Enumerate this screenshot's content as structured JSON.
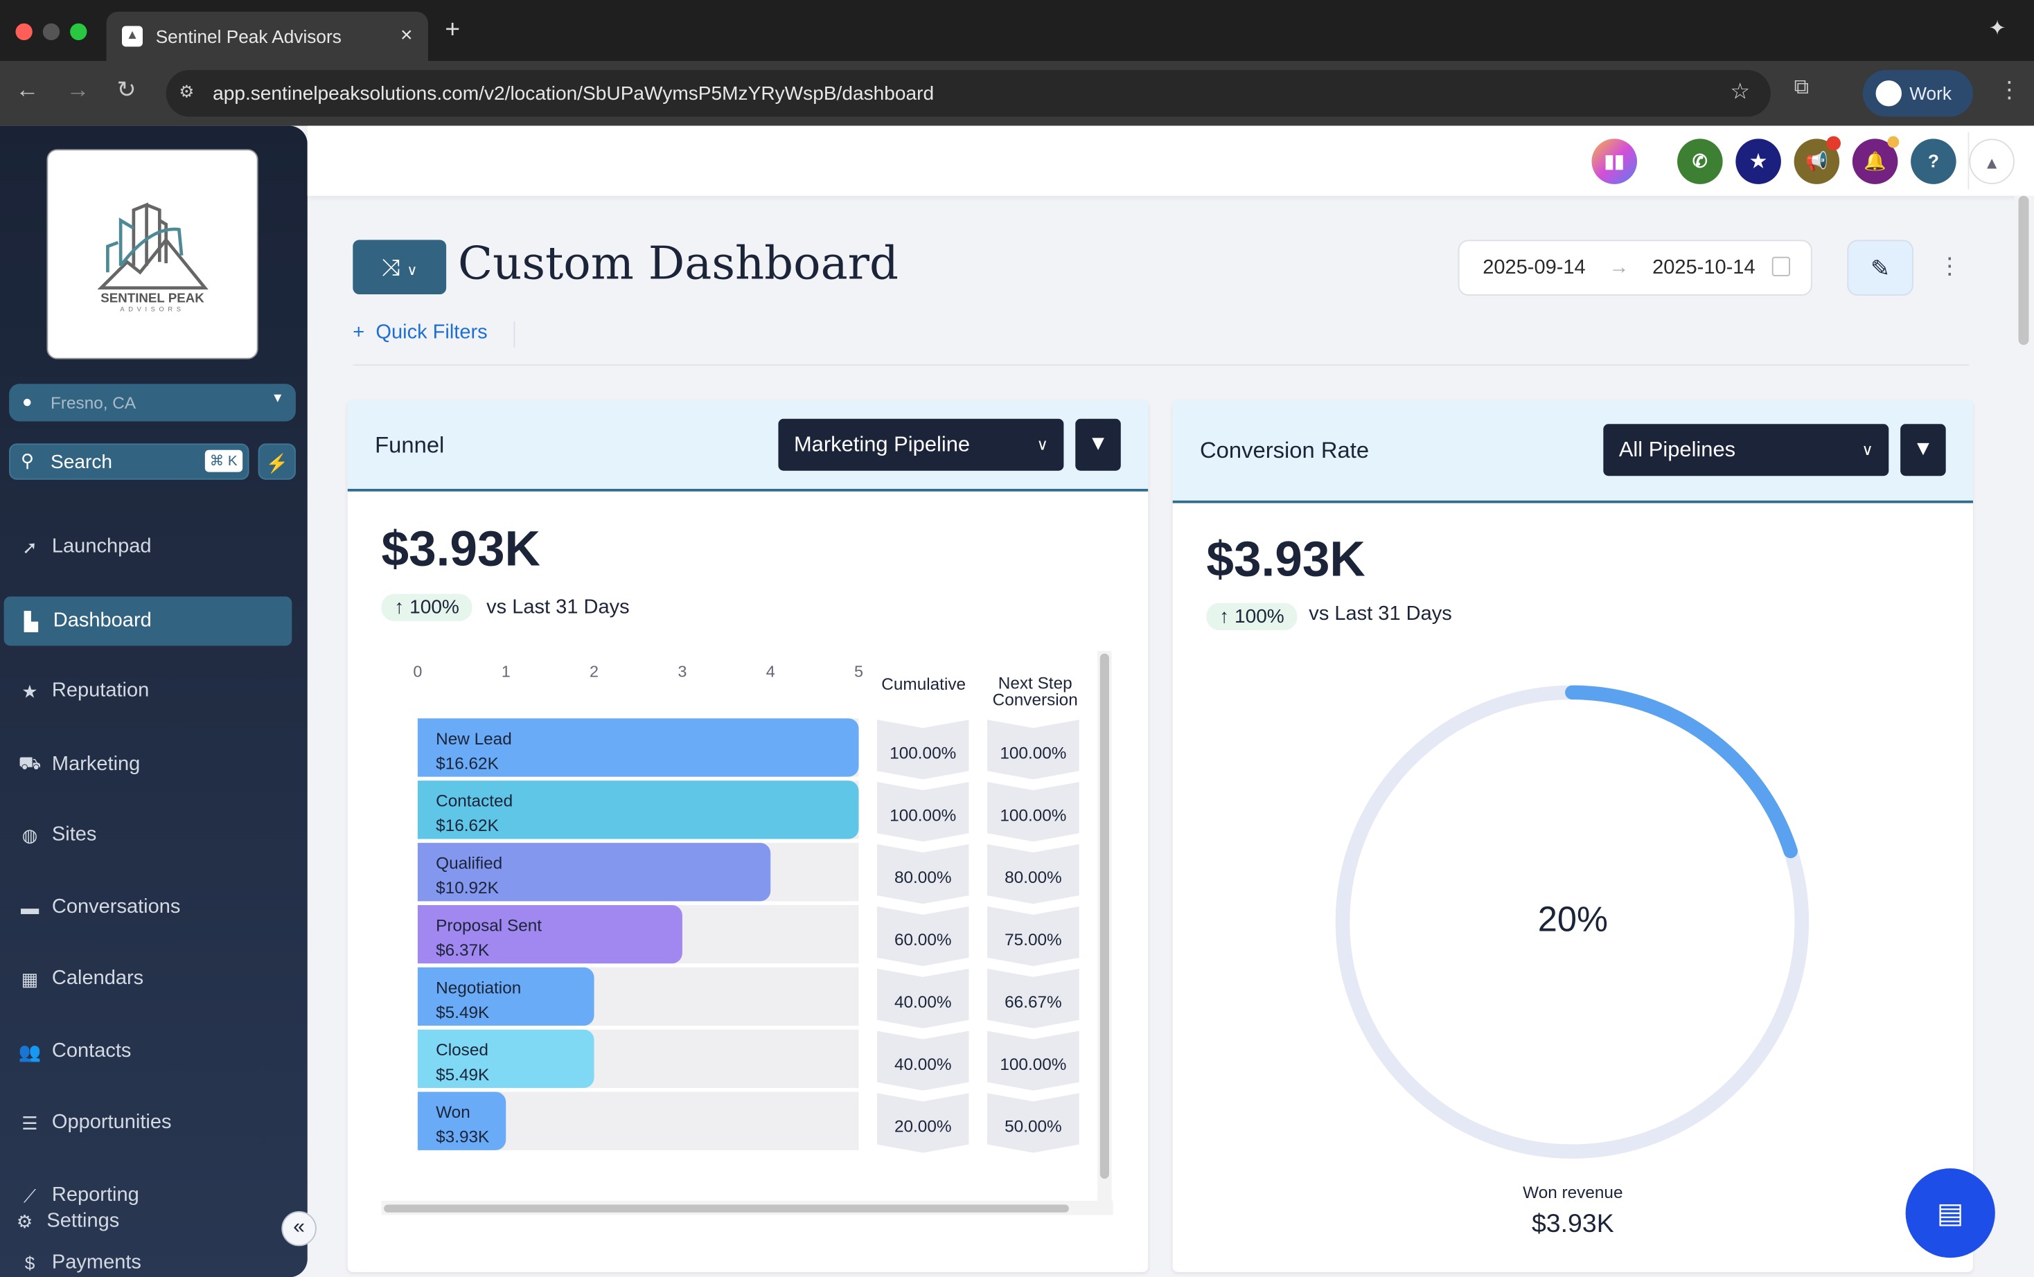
{
  "browser": {
    "tab_title": "Sentinel Peak Advisors",
    "new_tab": "+",
    "close": "×",
    "url": "app.sentinelpeaksolutions.com/v2/location/SbUPaWymsP5MzYRyWspB/dashboard",
    "profile": "Work"
  },
  "sidebar": {
    "logo_name": "SENTINEL PEAK",
    "logo_sub": "ADVISORS",
    "location": "Fresno, CA",
    "search": "Search",
    "shortcut": "⌘ K",
    "items": [
      {
        "label": "Launchpad",
        "icon": "rocket-icon"
      },
      {
        "label": "Dashboard",
        "icon": "dashboard-icon"
      },
      {
        "label": "Reputation",
        "icon": "star-icon"
      },
      {
        "label": "Marketing",
        "icon": "cart-icon"
      },
      {
        "label": "Sites",
        "icon": "globe-icon"
      },
      {
        "label": "Conversations",
        "icon": "chat-icon"
      },
      {
        "label": "Calendars",
        "icon": "calendar-icon"
      },
      {
        "label": "Contacts",
        "icon": "users-icon"
      },
      {
        "label": "Opportunities",
        "icon": "list-icon"
      },
      {
        "label": "Reporting",
        "icon": "chart-icon"
      },
      {
        "label": "Settings",
        "icon": "gear-icon"
      },
      {
        "label": "Payments",
        "icon": "dollar-icon"
      }
    ],
    "active": "Dashboard"
  },
  "header": {
    "icons": [
      {
        "name": "apps",
        "color": "#c060e0"
      },
      {
        "name": "phone",
        "color": "#3e8033"
      },
      {
        "name": "star",
        "color": "#1b1f7e"
      },
      {
        "name": "megaphone",
        "color": "#7d6a2a"
      },
      {
        "name": "bell",
        "color": "#742281"
      },
      {
        "name": "help",
        "color": "#326482"
      }
    ]
  },
  "page": {
    "title": "Custom Dashboard",
    "quick_filters": "Quick Filters",
    "date_start": "2025-09-14",
    "date_end": "2025-10-14"
  },
  "funnel": {
    "title": "Funnel",
    "pipeline": "Marketing Pipeline",
    "total": "$3.93K",
    "change": "↑ 100%",
    "compare": "vs Last 31 Days",
    "col_cumulative": "Cumulative",
    "col_next": "Next Step Conversion"
  },
  "chart_data": {
    "type": "bar",
    "orientation": "horizontal",
    "xlim": [
      0,
      5
    ],
    "x_ticks": [
      "0",
      "1",
      "2",
      "3",
      "4",
      "5"
    ],
    "categories": [
      "New Lead",
      "Contacted",
      "Qualified",
      "Proposal Sent",
      "Negotiation",
      "Closed",
      "Won"
    ],
    "values": [
      5,
      5,
      4,
      3,
      2,
      2,
      1
    ],
    "amounts": [
      "$16.62K",
      "$16.62K",
      "$10.92K",
      "$6.37K",
      "$5.49K",
      "$5.49K",
      "$3.93K"
    ],
    "cumulative": [
      "100.00%",
      "100.00%",
      "80.00%",
      "60.00%",
      "40.00%",
      "40.00%",
      "20.00%"
    ],
    "next_step": [
      "100.00%",
      "100.00%",
      "80.00%",
      "75.00%",
      "66.67%",
      "100.00%",
      "50.00%"
    ],
    "colors": [
      "#6aabf7",
      "#60c6e8",
      "#8497ef",
      "#a088f0",
      "#6aabf7",
      "#7fd8f4",
      "#6aabf7"
    ]
  },
  "conversion": {
    "title": "Conversion Rate",
    "pipeline": "All Pipelines",
    "total": "$3.93K",
    "change": "↑ 100%",
    "compare": "vs Last 31 Days",
    "rate": "20%",
    "rate_value": 20,
    "won_label": "Won revenue",
    "won_value": "$3.93K",
    "arc_color": "#5aa2f0",
    "track_color": "#e5e8f5"
  }
}
